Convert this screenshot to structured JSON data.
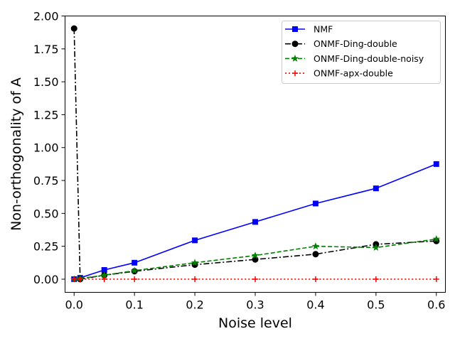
{
  "chart_data": {
    "type": "line",
    "title": "",
    "xlabel": "Noise level",
    "ylabel": "Non-orthogonality of A",
    "xlim": [
      -0.015,
      0.615
    ],
    "ylim": [
      -0.1,
      2.0
    ],
    "xticks": [
      0.0,
      0.1,
      0.2,
      0.3,
      0.4,
      0.5,
      0.6
    ],
    "xtick_labels": [
      "0.0",
      "0.1",
      "0.2",
      "0.3",
      "0.4",
      "0.5",
      "0.6"
    ],
    "yticks": [
      0.0,
      0.25,
      0.5,
      0.75,
      1.0,
      1.25,
      1.5,
      1.75,
      2.0
    ],
    "ytick_labels": [
      "0.00",
      "0.25",
      "0.50",
      "0.75",
      "1.00",
      "1.25",
      "1.50",
      "1.75",
      "2.00"
    ],
    "grid": false,
    "legend_position": "top-right",
    "x": [
      0.0,
      0.01,
      0.05,
      0.1,
      0.2,
      0.3,
      0.4,
      0.5,
      0.6
    ],
    "series": [
      {
        "name": "NMF",
        "color": "#0000ff",
        "line_style": "solid",
        "marker": "square",
        "values": [
          0.0,
          0.01,
          0.07,
          0.125,
          0.295,
          0.435,
          0.575,
          0.69,
          0.875
        ]
      },
      {
        "name": "ONMF-Ding-double",
        "color": "#000000",
        "line_style": "dashdot",
        "marker": "circle",
        "values": [
          1.905,
          0.0,
          0.03,
          0.06,
          0.11,
          0.15,
          0.19,
          0.265,
          0.29
        ]
      },
      {
        "name": "ONMF-Ding-double-noisy",
        "color": "#008000",
        "line_style": "dashed",
        "marker": "star",
        "values": [
          0.0,
          0.005,
          0.03,
          0.065,
          0.125,
          0.18,
          0.25,
          0.24,
          0.305
        ]
      },
      {
        "name": "ONMF-apx-double",
        "color": "#ff0000",
        "line_style": "dotted",
        "marker": "plus",
        "values": [
          0.0,
          0.0,
          0.0,
          0.0,
          0.0,
          0.0,
          0.0,
          0.0,
          0.0
        ]
      }
    ]
  }
}
